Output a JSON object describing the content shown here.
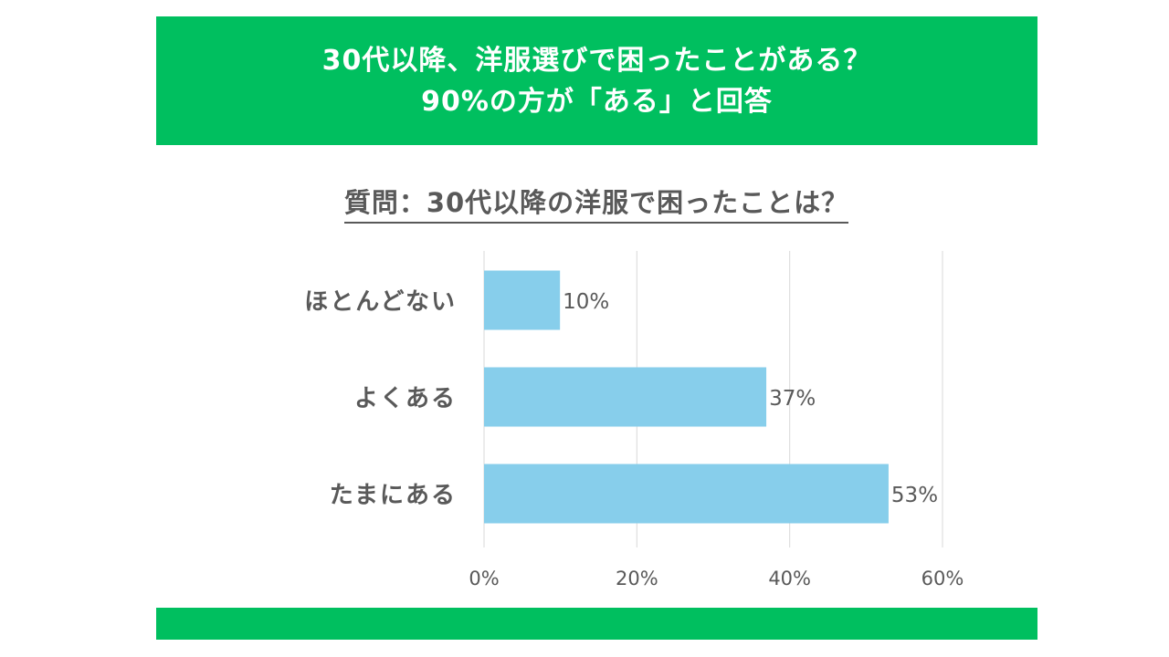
{
  "header": {
    "line1": "30代以降、洋服選びで困ったことがある？",
    "line2": "90%の方が「ある」と回答"
  },
  "colors": {
    "brand_green": "#00bf5f",
    "bar": "#87ceeb",
    "text": "#595959",
    "grid": "#d9d9d9"
  },
  "chart_data": {
    "type": "bar",
    "orientation": "horizontal",
    "title": "質問：30代以降の洋服で困ったことは？",
    "categories": [
      "ほとんどない",
      "よくある",
      "たまにある"
    ],
    "values": [
      10,
      37,
      53
    ],
    "data_labels": [
      "10%",
      "37%",
      "53%"
    ],
    "xlim": [
      0,
      60
    ],
    "x_ticks": [
      0,
      20,
      40,
      60
    ],
    "x_tick_labels": [
      "0%",
      "20%",
      "40%",
      "60%"
    ],
    "grid": true,
    "legend": "none"
  }
}
